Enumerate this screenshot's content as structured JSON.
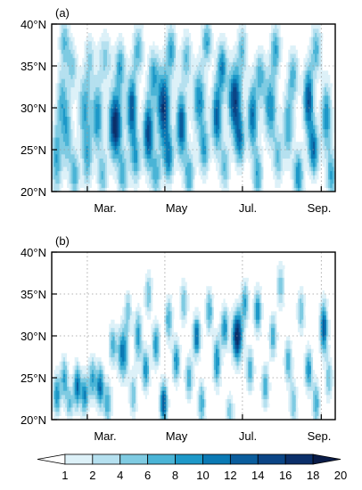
{
  "chart_data": {
    "type": "heatmap",
    "colorbar": {
      "levels": [
        "1",
        "2",
        "4",
        "6",
        "8",
        "10",
        "12",
        "14",
        "16",
        "18",
        "20"
      ],
      "colors": [
        "#ffffff",
        "#ddf1f8",
        "#b5e0ef",
        "#7fcbe2",
        "#4ab4d6",
        "#1d98c8",
        "#0a79b4",
        "#0a5d9d",
        "#0b4586",
        "#0b2f6a",
        "#0a1c48"
      ],
      "extend": "both"
    },
    "panels": [
      {
        "label": "(a)",
        "y_ticks": [
          "20°N",
          "25°N",
          "30°N",
          "35°N",
          "40°N"
        ],
        "y_values": [
          20,
          25,
          30,
          35,
          40
        ],
        "ylim": [
          20,
          40
        ],
        "x_ticks": [
          "Mar.",
          "May",
          "Jul.",
          "Sep."
        ],
        "x_values": [
          60,
          121,
          182,
          244
        ],
        "xlim": [
          32,
          255
        ],
        "grid": "dotted",
        "blobs": [
          [
            36,
            24,
            4,
            4.5,
            10
          ],
          [
            40,
            31,
            4,
            3.5,
            8
          ],
          [
            42,
            38,
            4,
            3,
            8
          ],
          [
            44,
            27,
            4,
            4,
            9
          ],
          [
            48,
            35,
            4,
            3,
            7
          ],
          [
            50,
            22,
            4,
            3,
            9
          ],
          [
            58,
            30,
            5,
            4,
            10
          ],
          [
            60,
            24,
            4,
            3.5,
            9
          ],
          [
            62,
            36,
            4,
            3,
            6
          ],
          [
            68,
            29,
            4,
            4,
            12
          ],
          [
            72,
            22,
            4,
            3,
            8
          ],
          [
            74,
            36,
            5,
            3,
            7
          ],
          [
            82,
            28,
            5,
            4,
            20
          ],
          [
            86,
            35,
            4,
            3,
            10
          ],
          [
            88,
            22,
            4,
            3,
            9
          ],
          [
            95,
            30,
            4,
            4,
            16
          ],
          [
            98,
            24,
            4,
            3,
            10
          ],
          [
            100,
            37,
            4,
            3,
            9
          ],
          [
            108,
            27,
            4,
            4,
            17
          ],
          [
            112,
            34,
            4,
            3,
            10
          ],
          [
            114,
            22,
            4,
            3,
            9
          ],
          [
            120,
            30,
            5,
            4.5,
            18
          ],
          [
            124,
            24,
            4,
            3,
            12
          ],
          [
            126,
            37,
            4,
            3,
            10
          ],
          [
            134,
            28,
            4,
            4,
            16
          ],
          [
            138,
            36,
            4,
            3,
            8
          ],
          [
            140,
            22,
            4,
            3,
            10
          ],
          [
            148,
            31,
            5,
            4,
            12
          ],
          [
            152,
            25,
            4,
            3,
            10
          ],
          [
            154,
            38,
            4,
            2.5,
            10
          ],
          [
            162,
            29,
            4,
            4,
            15
          ],
          [
            166,
            35,
            4,
            3,
            12
          ],
          [
            168,
            23,
            4,
            3,
            8
          ],
          [
            176,
            31,
            5,
            4,
            18
          ],
          [
            180,
            26,
            4,
            3,
            12
          ],
          [
            182,
            37,
            4,
            3,
            8
          ],
          [
            190,
            29,
            4,
            4,
            14
          ],
          [
            194,
            22,
            4,
            3,
            10
          ],
          [
            196,
            34,
            4,
            3,
            9
          ],
          [
            204,
            30,
            5,
            4,
            12
          ],
          [
            208,
            37,
            4,
            3,
            10
          ],
          [
            210,
            24,
            4,
            3,
            8
          ],
          [
            218,
            28,
            4,
            4,
            10
          ],
          [
            222,
            34,
            4,
            3,
            9
          ],
          [
            226,
            22,
            4,
            3,
            12
          ],
          [
            234,
            31,
            4,
            4,
            16
          ],
          [
            238,
            25,
            4,
            3,
            14
          ],
          [
            240,
            37,
            4,
            3,
            9
          ],
          [
            248,
            29,
            4,
            4,
            12
          ],
          [
            252,
            22,
            4,
            3,
            10
          ]
        ]
      },
      {
        "label": "(b)",
        "y_ticks": [
          "20°N",
          "25°N",
          "30°N",
          "35°N",
          "40°N"
        ],
        "y_values": [
          20,
          25,
          30,
          35,
          40
        ],
        "ylim": [
          20,
          40
        ],
        "x_ticks": [
          "Mar.",
          "May",
          "Jul.",
          "Sep."
        ],
        "x_values": [
          60,
          121,
          182,
          244
        ],
        "xlim": [
          32,
          255
        ],
        "grid": "dotted",
        "blobs": [
          [
            36,
            23,
            3,
            2.5,
            12
          ],
          [
            42,
            25,
            3,
            2.5,
            10
          ],
          [
            46,
            22,
            3,
            2,
            8
          ],
          [
            52,
            24,
            3,
            2.5,
            14
          ],
          [
            58,
            23,
            3,
            2.5,
            12
          ],
          [
            64,
            25,
            3,
            2.5,
            10
          ],
          [
            70,
            24,
            3,
            2.5,
            14
          ],
          [
            76,
            22,
            3,
            2.5,
            10
          ],
          [
            80,
            29,
            3,
            2.5,
            9
          ],
          [
            88,
            28,
            4,
            3,
            14
          ],
          [
            92,
            33,
            3,
            2.5,
            7
          ],
          [
            96,
            23,
            3,
            2.5,
            8
          ],
          [
            100,
            30,
            3,
            3,
            11
          ],
          [
            106,
            26,
            3,
            2.5,
            12
          ],
          [
            108,
            35,
            3,
            2.5,
            8
          ],
          [
            114,
            29,
            3,
            2.5,
            12
          ],
          [
            120,
            22,
            3,
            2.5,
            16
          ],
          [
            124,
            32,
            3,
            2.5,
            10
          ],
          [
            130,
            27,
            3,
            2.5,
            12
          ],
          [
            136,
            34,
            3,
            2.5,
            8
          ],
          [
            140,
            25,
            3,
            2.5,
            10
          ],
          [
            146,
            30,
            3,
            2.5,
            14
          ],
          [
            150,
            22,
            3,
            2.5,
            10
          ],
          [
            156,
            33,
            3,
            2.5,
            10
          ],
          [
            162,
            27,
            3,
            3,
            12
          ],
          [
            168,
            31,
            3,
            2.5,
            12
          ],
          [
            172,
            21,
            3,
            2,
            8
          ],
          [
            178,
            30,
            4,
            3,
            20
          ],
          [
            184,
            34,
            3,
            2.5,
            10
          ],
          [
            188,
            26,
            3,
            2.5,
            10
          ],
          [
            194,
            33,
            3,
            2.5,
            12
          ],
          [
            200,
            24,
            3,
            2.5,
            10
          ],
          [
            206,
            30,
            3,
            2.5,
            10
          ],
          [
            212,
            36,
            3,
            2.5,
            8
          ],
          [
            218,
            27,
            3,
            2.5,
            10
          ],
          [
            222,
            22,
            3,
            2.5,
            8
          ],
          [
            228,
            33,
            3,
            2.5,
            8
          ],
          [
            234,
            26,
            3,
            2.5,
            12
          ],
          [
            240,
            22,
            3,
            2.5,
            10
          ],
          [
            246,
            31,
            3,
            3,
            16
          ],
          [
            250,
            25,
            3,
            2.5,
            8
          ]
        ]
      }
    ]
  }
}
